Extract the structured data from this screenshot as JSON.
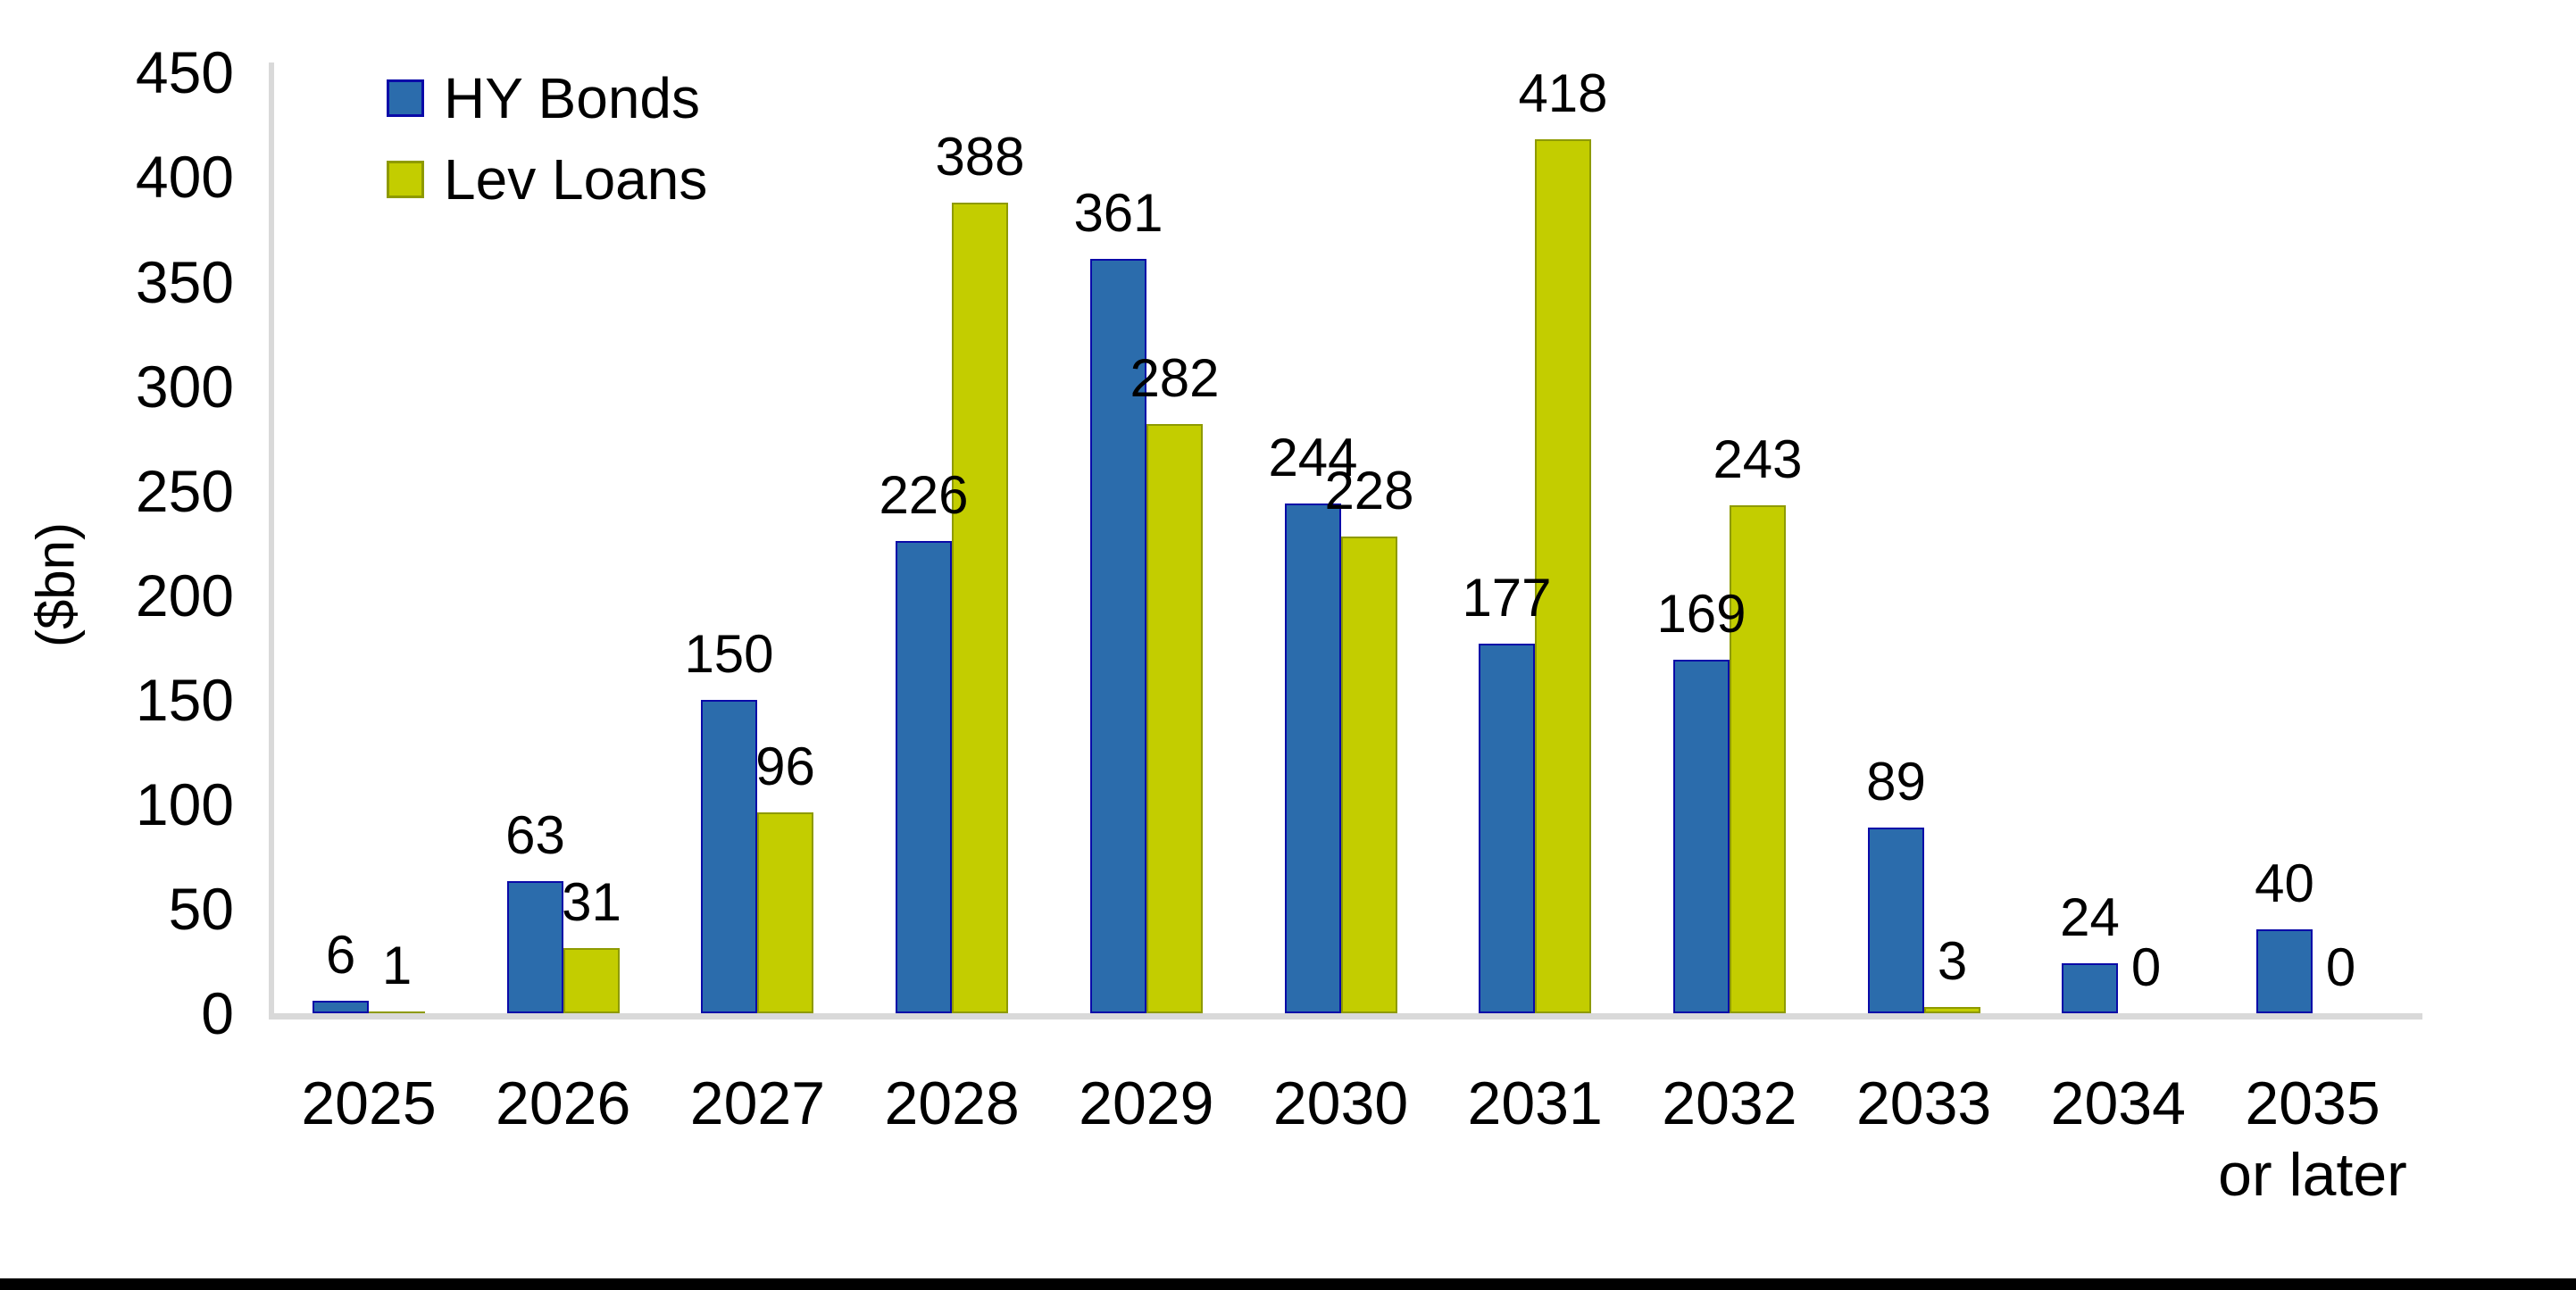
{
  "chart_data": {
    "type": "bar",
    "title": "",
    "ylabel": "($bn)",
    "xlabel": "",
    "categories": [
      "2025",
      "2026",
      "2027",
      "2028",
      "2029",
      "2030",
      "2031",
      "2032",
      "2033",
      "2034",
      "2035\nor later"
    ],
    "series": [
      {
        "name": "HY Bonds",
        "color": "#2B6CAC",
        "border_color": "#0A0AA8",
        "values": [
          6,
          63,
          150,
          226,
          361,
          244,
          177,
          169,
          89,
          24,
          40
        ]
      },
      {
        "name": "Lev Loans",
        "color": "#C3CD00",
        "border_color": "#8E9A00",
        "values": [
          1,
          31,
          96,
          388,
          282,
          228,
          418,
          243,
          3,
          0,
          0
        ]
      }
    ],
    "data_labels_visible": true,
    "ylim": [
      0,
      450
    ],
    "ytick_step": 50,
    "yticks": [
      0,
      50,
      100,
      150,
      200,
      250,
      300,
      350,
      400,
      450
    ],
    "grid": false,
    "legend_position": "top-left",
    "axis_color": "#D9D9D9",
    "text_color": "#000000",
    "background_color": "#FFFFFF",
    "bottom_rule_color": "#000000"
  }
}
